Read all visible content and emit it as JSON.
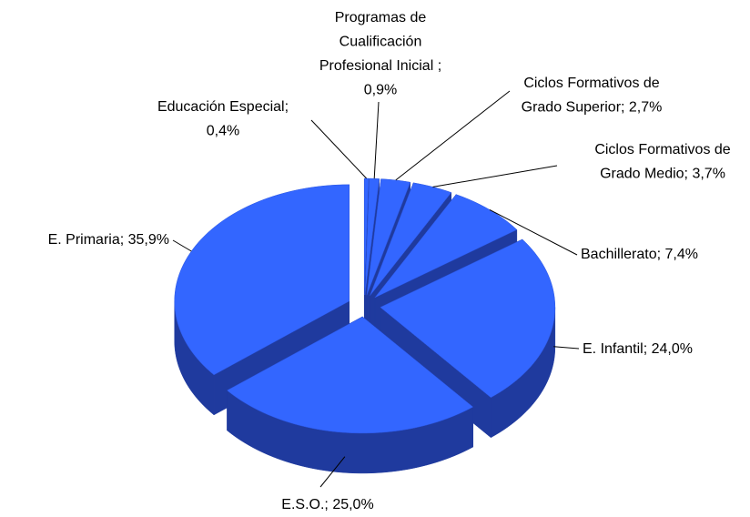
{
  "chart_data": {
    "type": "pie",
    "values": [
      0.4,
      0.9,
      2.7,
      3.7,
      7.4,
      24.0,
      25.0,
      35.9
    ],
    "value_labels": [
      [
        "Educación Especial;",
        "0,4%"
      ],
      [
        "Programas de",
        "Cualificación",
        "Profesional Inicial ;",
        "0,9%"
      ],
      [
        "Ciclos Formativos de",
        "Grado Superior; 2,7%"
      ],
      [
        "Ciclos Formativos de",
        "Grado Medio; 3,7%"
      ],
      [
        "Bachillerato; 7,4%"
      ],
      [
        "E. Infantil; 24,0%"
      ],
      [
        "E.S.O.; 25,0%"
      ],
      [
        "E. Primaria; 35,9%"
      ]
    ],
    "color": "#3366ff",
    "side_color": "#1f3a9e",
    "exploded": true
  }
}
